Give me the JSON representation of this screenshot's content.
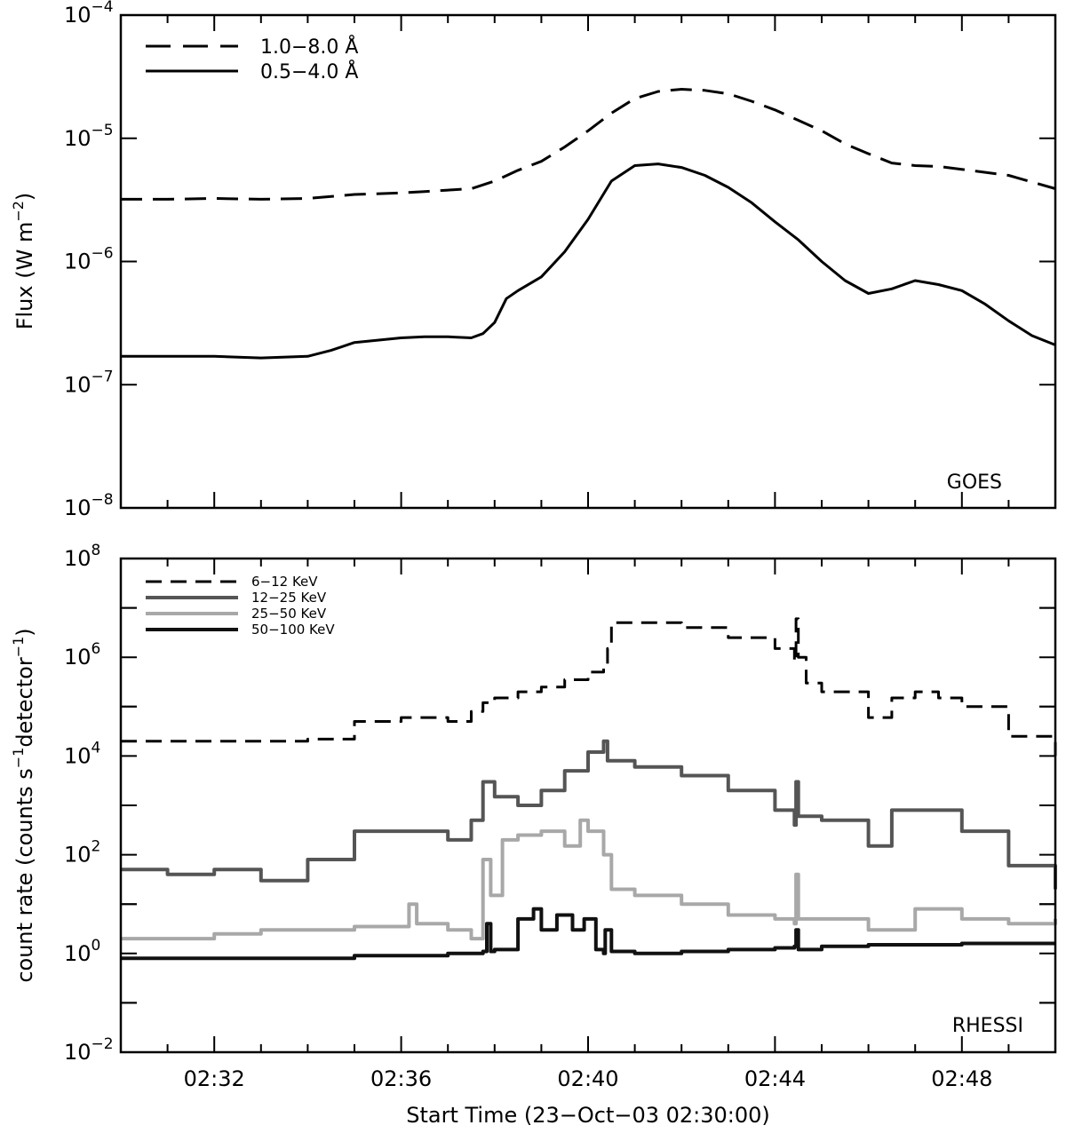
{
  "chart_data": [
    {
      "type": "line",
      "panel_label": "GOES",
      "ylabel": "Flux (W m",
      "ylabel_sup": "−2",
      "ylabel_end": ")",
      "yscale": "log",
      "ylim": [
        1e-08,
        0.0001
      ],
      "xlim": [
        "02:30",
        "02:50"
      ],
      "y_ticks": [
        {
          "base": "10",
          "exp": "−8",
          "value": 1e-08
        },
        {
          "base": "10",
          "exp": "−7",
          "value": 1e-07
        },
        {
          "base": "10",
          "exp": "−6",
          "value": 1e-06
        },
        {
          "base": "10",
          "exp": "−5",
          "value": 1e-05
        },
        {
          "base": "10",
          "exp": "−4",
          "value": 0.0001
        }
      ],
      "legend_position": "top-left",
      "series": [
        {
          "name": "1.0−8.0 Å",
          "style": "dashed",
          "color": "#000000",
          "x": [
            "02:30:00",
            "02:31:00",
            "02:32:00",
            "02:33:00",
            "02:34:00",
            "02:35:00",
            "02:36:00",
            "02:36:30",
            "02:37:00",
            "02:37:30",
            "02:38:00",
            "02:38:30",
            "02:39:00",
            "02:39:30",
            "02:40:00",
            "02:40:30",
            "02:41:00",
            "02:41:30",
            "02:42:00",
            "02:42:30",
            "02:43:00",
            "02:43:30",
            "02:44:00",
            "02:44:30",
            "02:45:00",
            "02:45:30",
            "02:46:00",
            "02:46:30",
            "02:47:00",
            "02:47:30",
            "02:48:00",
            "02:49:00",
            "02:50:00"
          ],
          "y": [
            3.2e-06,
            3.2e-06,
            3.25e-06,
            3.2e-06,
            3.25e-06,
            3.5e-06,
            3.6e-06,
            3.7e-06,
            3.8e-06,
            3.9e-06,
            4.5e-06,
            5.5e-06,
            6.5e-06,
            8.5e-06,
            1.15e-05,
            1.6e-05,
            2.1e-05,
            2.4e-05,
            2.5e-05,
            2.45e-05,
            2.3e-05,
            2e-05,
            1.7e-05,
            1.4e-05,
            1.15e-05,
            9e-06,
            7.5e-06,
            6.3e-06,
            6e-06,
            5.9e-06,
            5.6e-06,
            5e-06,
            3.9e-06
          ]
        },
        {
          "name": "0.5−4.0 Å",
          "style": "solid",
          "color": "#000000",
          "x": [
            "02:30:00",
            "02:31:00",
            "02:32:00",
            "02:33:00",
            "02:34:00",
            "02:34:30",
            "02:35:00",
            "02:35:30",
            "02:36:00",
            "02:36:30",
            "02:37:00",
            "02:37:30",
            "02:37:45",
            "02:38:00",
            "02:38:15",
            "02:38:30",
            "02:39:00",
            "02:39:30",
            "02:40:00",
            "02:40:30",
            "02:41:00",
            "02:41:30",
            "02:42:00",
            "02:42:30",
            "02:43:00",
            "02:43:30",
            "02:44:00",
            "02:44:30",
            "02:45:00",
            "02:45:30",
            "02:46:00",
            "02:46:30",
            "02:47:00",
            "02:47:30",
            "02:48:00",
            "02:48:30",
            "02:49:00",
            "02:49:30",
            "02:50:00"
          ],
          "y": [
            1.7e-07,
            1.7e-07,
            1.7e-07,
            1.65e-07,
            1.7e-07,
            1.9e-07,
            2.2e-07,
            2.3e-07,
            2.4e-07,
            2.45e-07,
            2.45e-07,
            2.4e-07,
            2.6e-07,
            3.2e-07,
            5e-07,
            5.8e-07,
            7.5e-07,
            1.2e-06,
            2.2e-06,
            4.5e-06,
            6e-06,
            6.2e-06,
            5.8e-06,
            5e-06,
            4e-06,
            3e-06,
            2.1e-06,
            1.5e-06,
            1e-06,
            7e-07,
            5.5e-07,
            6e-07,
            7e-07,
            6.5e-07,
            5.8e-07,
            4.5e-07,
            3.3e-07,
            2.5e-07,
            2.1e-07
          ]
        }
      ]
    },
    {
      "type": "line",
      "panel_label": "RHESSI",
      "ylabel": "count rate (counts s",
      "ylabel_sup1": "−1",
      "ylabel_mid": "detector",
      "ylabel_sup2": "−1",
      "ylabel_end": ")",
      "yscale": "log",
      "ylim": [
        0.01,
        100000000.0
      ],
      "xlim": [
        "02:30",
        "02:50"
      ],
      "xlabel": "Start Time (23−Oct−03 02:30:00)",
      "x_ticks": [
        "02:32",
        "02:36",
        "02:40",
        "02:44",
        "02:48"
      ],
      "y_ticks": [
        {
          "base": "10",
          "exp": "−2",
          "value": 0.01
        },
        {
          "base": "10",
          "exp": "0",
          "value": 1
        },
        {
          "base": "10",
          "exp": "2",
          "value": 100.0
        },
        {
          "base": "10",
          "exp": "4",
          "value": 10000.0
        },
        {
          "base": "10",
          "exp": "6",
          "value": 1000000.0
        },
        {
          "base": "10",
          "exp": "8",
          "value": 100000000.0
        }
      ],
      "legend_position": "top-left",
      "series": [
        {
          "name": "6−12 KeV",
          "style": "dashed",
          "color": "#000000",
          "x": [
            "02:30:00",
            "02:31:00",
            "02:32:00",
            "02:33:00",
            "02:34:00",
            "02:35:00",
            "02:36:00",
            "02:37:00",
            "02:37:30",
            "02:37:45",
            "02:38:00",
            "02:38:30",
            "02:39:00",
            "02:39:30",
            "02:40:00",
            "02:40:20",
            "02:40:25",
            "02:40:30",
            "02:41:00",
            "02:42:00",
            "02:43:00",
            "02:44:00",
            "02:44:25",
            "02:44:27",
            "02:44:30",
            "02:44:40",
            "02:45:00",
            "02:46:00",
            "02:46:30",
            "02:47:00",
            "02:47:30",
            "02:48:00",
            "02:49:00",
            "02:50:00"
          ],
          "y": [
            20000.0,
            20000.0,
            20000.0,
            20000.0,
            22000.0,
            50000.0,
            60000.0,
            50000.0,
            80000.0,
            120000.0,
            150000.0,
            200000.0,
            250000.0,
            350000.0,
            500000.0,
            600000.0,
            1500000.0,
            5000000.0,
            5000000.0,
            4000000.0,
            2500000.0,
            1500000.0,
            800000.0,
            6000000.0,
            1000000.0,
            300000.0,
            200000.0,
            60000.0,
            150000.0,
            200000.0,
            150000.0,
            100000.0,
            25000.0,
            10000.0
          ]
        },
        {
          "name": "12−25 KeV",
          "style": "solid",
          "color": "#555555",
          "x": [
            "02:30:00",
            "02:31:00",
            "02:32:00",
            "02:33:00",
            "02:34:00",
            "02:35:00",
            "02:36:00",
            "02:37:00",
            "02:37:30",
            "02:37:45",
            "02:38:00",
            "02:38:30",
            "02:39:00",
            "02:39:30",
            "02:40:00",
            "02:40:20",
            "02:40:25",
            "02:41:00",
            "02:42:00",
            "02:43:00",
            "02:44:00",
            "02:44:25",
            "02:44:27",
            "02:44:30",
            "02:45:00",
            "02:46:00",
            "02:46:30",
            "02:47:00",
            "02:48:00",
            "02:49:00",
            "02:50:00"
          ],
          "y": [
            50,
            40,
            50,
            30,
            80,
            300,
            300,
            200,
            500,
            3000,
            1500,
            1000,
            2000,
            5000,
            12000,
            20000,
            8000,
            6000,
            4000,
            2000,
            800,
            400,
            3000,
            600,
            500,
            150,
            800,
            800,
            300,
            60,
            20
          ]
        },
        {
          "name": "25−50 KeV",
          "style": "solid",
          "color": "#a8a8a8",
          "x": [
            "02:30:00",
            "02:31:00",
            "02:32:00",
            "02:33:00",
            "02:34:00",
            "02:35:00",
            "02:36:00",
            "02:36:10",
            "02:36:20",
            "02:37:00",
            "02:37:30",
            "02:37:45",
            "02:37:55",
            "02:38:10",
            "02:38:30",
            "02:39:00",
            "02:39:30",
            "02:39:50",
            "02:40:00",
            "02:40:20",
            "02:40:30",
            "02:41:00",
            "02:42:00",
            "02:43:00",
            "02:44:00",
            "02:44:25",
            "02:44:27",
            "02:44:30",
            "02:45:00",
            "02:46:00",
            "02:47:00",
            "02:48:00",
            "02:49:00",
            "02:50:00"
          ],
          "y": [
            2,
            2,
            2.5,
            3,
            3,
            3.5,
            3.5,
            10,
            4,
            3,
            2,
            80,
            15,
            200,
            250,
            300,
            150,
            500,
            300,
            100,
            20,
            15,
            10,
            6,
            5,
            4,
            40,
            5,
            5,
            3,
            8,
            5,
            4,
            5
          ]
        },
        {
          "name": "50−100 KeV",
          "style": "solid",
          "color": "#111111",
          "x": [
            "02:30:00",
            "02:31:00",
            "02:32:00",
            "02:33:00",
            "02:34:00",
            "02:35:00",
            "02:36:00",
            "02:37:00",
            "02:37:45",
            "02:37:50",
            "02:37:55",
            "02:38:00",
            "02:38:30",
            "02:38:50",
            "02:39:00",
            "02:39:20",
            "02:39:40",
            "02:39:55",
            "02:40:10",
            "02:40:20",
            "02:40:22",
            "02:40:30",
            "02:41:00",
            "02:42:00",
            "02:43:00",
            "02:44:00",
            "02:44:25",
            "02:44:27",
            "02:44:30",
            "02:45:00",
            "02:46:00",
            "02:47:00",
            "02:48:00",
            "02:49:00",
            "02:50:00"
          ],
          "y": [
            0.8,
            0.8,
            0.8,
            0.8,
            0.8,
            0.9,
            0.9,
            1.0,
            1.1,
            4,
            1.1,
            1.2,
            5,
            8,
            3,
            6,
            3,
            5,
            1.2,
            1.0,
            3,
            1.1,
            1.0,
            1.1,
            1.2,
            1.3,
            1.4,
            3,
            1.2,
            1.4,
            1.5,
            1.5,
            1.6,
            1.6,
            1.6
          ]
        }
      ]
    }
  ]
}
